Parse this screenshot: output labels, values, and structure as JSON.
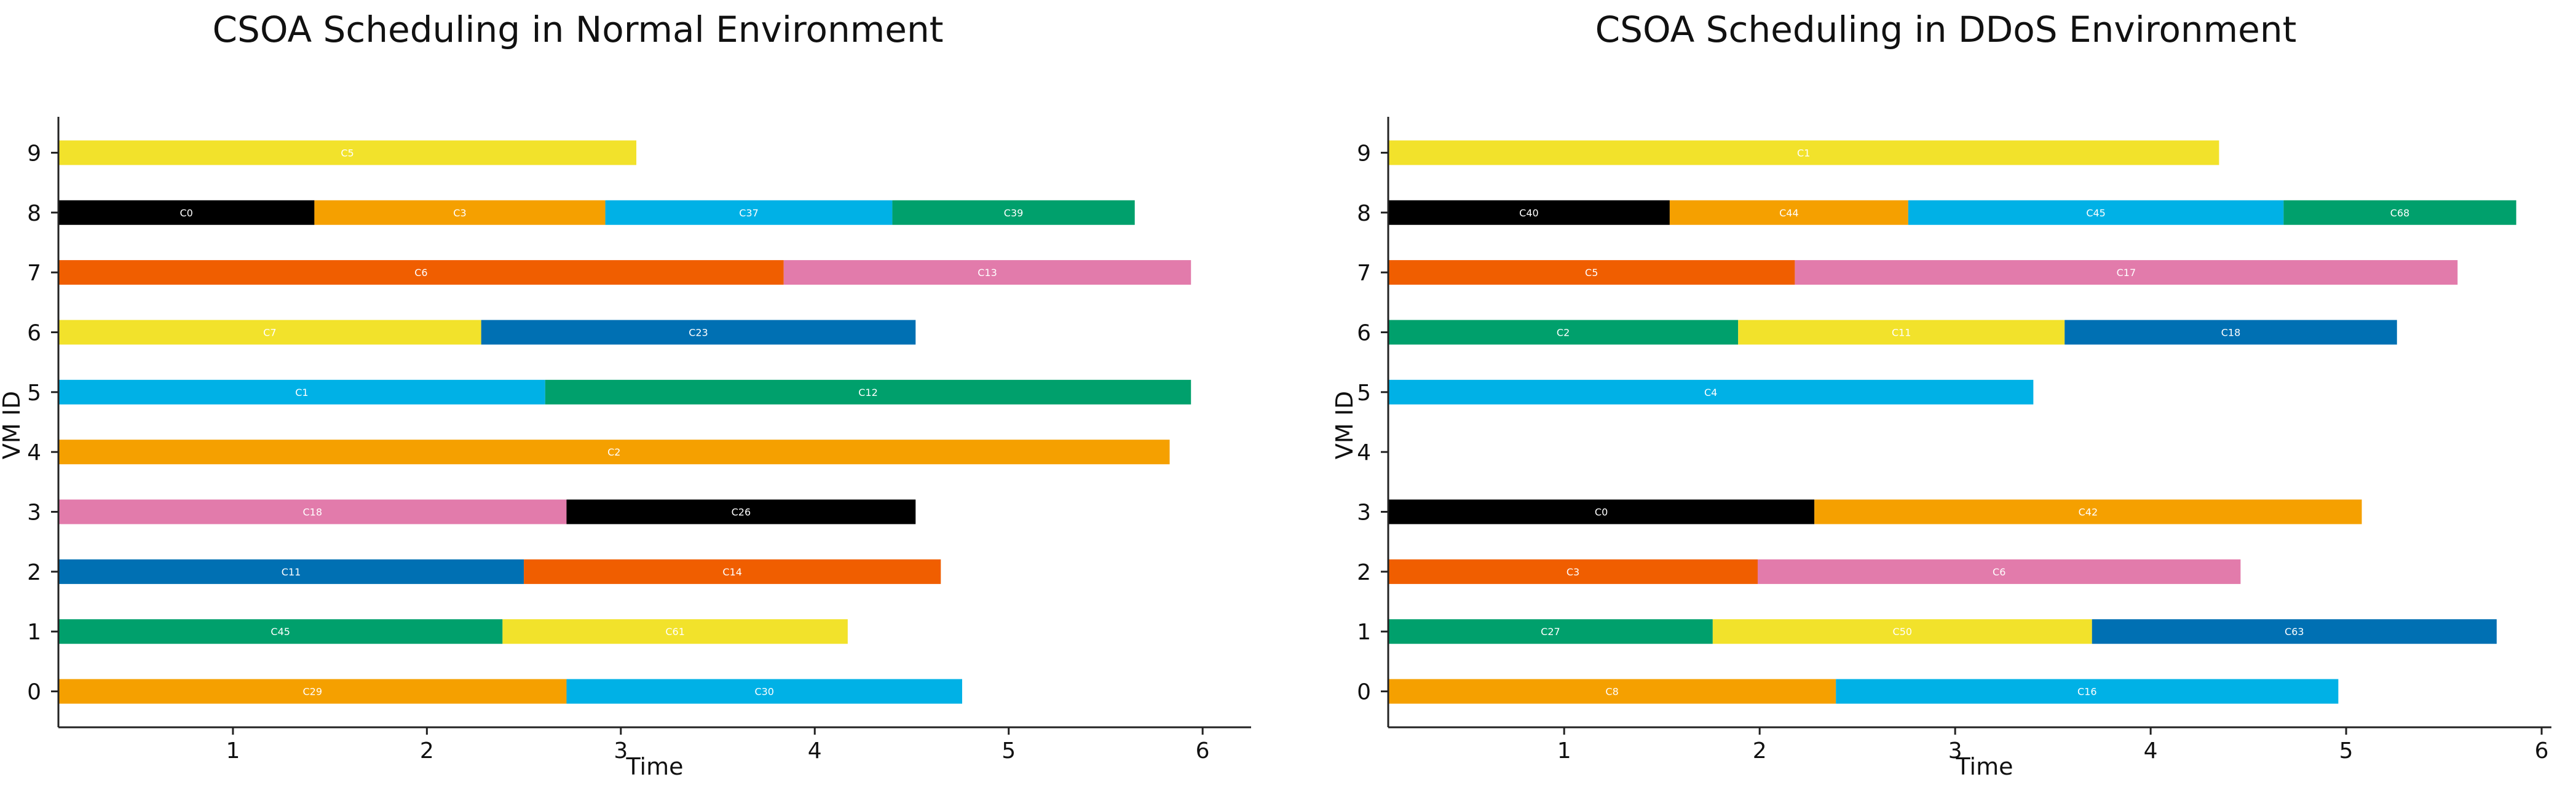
{
  "chart_data": [
    {
      "type": "gantt",
      "title": "CSOA Scheduling in Normal Environment",
      "xlabel": "Time",
      "ylabel": "VM ID",
      "xlim": [
        0.1,
        6.25
      ],
      "ylim": [
        -0.6,
        9.6
      ],
      "xticks": [
        1,
        2,
        3,
        4,
        5,
        6
      ],
      "yticks": [
        0,
        1,
        2,
        3,
        4,
        5,
        6,
        7,
        8,
        9
      ],
      "tasks": [
        {
          "vm": 9,
          "label": "C5",
          "start": 0.1,
          "end": 3.08,
          "color": "#f2e22b"
        },
        {
          "vm": 8,
          "label": "C0",
          "start": 0.1,
          "end": 1.42,
          "color": "#000000"
        },
        {
          "vm": 8,
          "label": "C3",
          "start": 1.42,
          "end": 2.92,
          "color": "#f5a000"
        },
        {
          "vm": 8,
          "label": "C37",
          "start": 2.92,
          "end": 4.4,
          "color": "#00b1e6"
        },
        {
          "vm": 8,
          "label": "C39",
          "start": 4.4,
          "end": 5.65,
          "color": "#00a06c"
        },
        {
          "vm": 7,
          "label": "C6",
          "start": 0.1,
          "end": 3.84,
          "color": "#f05e00"
        },
        {
          "vm": 7,
          "label": "C13",
          "start": 3.84,
          "end": 5.94,
          "color": "#e27bab"
        },
        {
          "vm": 6,
          "label": "C7",
          "start": 0.1,
          "end": 2.28,
          "color": "#f2e22b"
        },
        {
          "vm": 6,
          "label": "C23",
          "start": 2.28,
          "end": 4.52,
          "color": "#0070b3"
        },
        {
          "vm": 5,
          "label": "C1",
          "start": 0.1,
          "end": 2.61,
          "color": "#00b1e6"
        },
        {
          "vm": 5,
          "label": "C12",
          "start": 2.61,
          "end": 5.94,
          "color": "#00a06c"
        },
        {
          "vm": 4,
          "label": "C2",
          "start": 0.1,
          "end": 5.83,
          "color": "#f5a000"
        },
        {
          "vm": 3,
          "label": "C18",
          "start": 0.1,
          "end": 2.72,
          "color": "#e27bab"
        },
        {
          "vm": 3,
          "label": "C26",
          "start": 2.72,
          "end": 4.52,
          "color": "#000000"
        },
        {
          "vm": 2,
          "label": "C11",
          "start": 0.1,
          "end": 2.5,
          "color": "#0070b3"
        },
        {
          "vm": 2,
          "label": "C14",
          "start": 2.5,
          "end": 4.65,
          "color": "#f05e00"
        },
        {
          "vm": 1,
          "label": "C45",
          "start": 0.1,
          "end": 2.39,
          "color": "#00a06c"
        },
        {
          "vm": 1,
          "label": "C61",
          "start": 2.39,
          "end": 4.17,
          "color": "#f2e22b"
        },
        {
          "vm": 0,
          "label": "C29",
          "start": 0.1,
          "end": 2.72,
          "color": "#f5a000"
        },
        {
          "vm": 0,
          "label": "C30",
          "start": 2.72,
          "end": 4.76,
          "color": "#00b1e6"
        }
      ]
    },
    {
      "type": "gantt",
      "title": "CSOA Scheduling in DDoS Environment",
      "xlabel": "Time",
      "ylabel": "VM ID",
      "xlim": [
        0.1,
        6.05
      ],
      "ylim": [
        -0.6,
        9.6
      ],
      "xticks": [
        1,
        2,
        3,
        4,
        5,
        6
      ],
      "yticks": [
        0,
        1,
        2,
        3,
        4,
        5,
        6,
        7,
        8,
        9
      ],
      "tasks": [
        {
          "vm": 9,
          "label": "C1",
          "start": 0.1,
          "end": 4.35,
          "color": "#f2e22b"
        },
        {
          "vm": 8,
          "label": "C40",
          "start": 0.1,
          "end": 1.54,
          "color": "#000000"
        },
        {
          "vm": 8,
          "label": "C44",
          "start": 1.54,
          "end": 2.76,
          "color": "#f5a000"
        },
        {
          "vm": 8,
          "label": "C45",
          "start": 2.76,
          "end": 4.68,
          "color": "#00b1e6"
        },
        {
          "vm": 8,
          "label": "C68",
          "start": 4.68,
          "end": 5.87,
          "color": "#00a06c"
        },
        {
          "vm": 7,
          "label": "C5",
          "start": 0.1,
          "end": 2.18,
          "color": "#f05e00"
        },
        {
          "vm": 7,
          "label": "C17",
          "start": 2.18,
          "end": 5.57,
          "color": "#e27bab"
        },
        {
          "vm": 6,
          "label": "C2",
          "start": 0.1,
          "end": 1.89,
          "color": "#00a06c"
        },
        {
          "vm": 6,
          "label": "C11",
          "start": 1.89,
          "end": 3.56,
          "color": "#f2e22b"
        },
        {
          "vm": 6,
          "label": "C18",
          "start": 3.56,
          "end": 5.26,
          "color": "#0070b3"
        },
        {
          "vm": 5,
          "label": "C4",
          "start": 0.1,
          "end": 3.4,
          "color": "#00b1e6"
        },
        {
          "vm": 3,
          "label": "C0",
          "start": 0.1,
          "end": 2.28,
          "color": "#000000"
        },
        {
          "vm": 3,
          "label": "C42",
          "start": 2.28,
          "end": 5.08,
          "color": "#f5a000"
        },
        {
          "vm": 2,
          "label": "C3",
          "start": 0.1,
          "end": 1.99,
          "color": "#f05e00"
        },
        {
          "vm": 2,
          "label": "C6",
          "start": 1.99,
          "end": 4.46,
          "color": "#e27bab"
        },
        {
          "vm": 1,
          "label": "C27",
          "start": 0.1,
          "end": 1.76,
          "color": "#00a06c"
        },
        {
          "vm": 1,
          "label": "C50",
          "start": 1.76,
          "end": 3.7,
          "color": "#f2e22b"
        },
        {
          "vm": 1,
          "label": "C63",
          "start": 3.7,
          "end": 5.77,
          "color": "#0070b3"
        },
        {
          "vm": 0,
          "label": "C8",
          "start": 0.1,
          "end": 2.39,
          "color": "#f5a000"
        },
        {
          "vm": 0,
          "label": "C16",
          "start": 2.39,
          "end": 4.96,
          "color": "#00b1e6"
        }
      ]
    }
  ]
}
